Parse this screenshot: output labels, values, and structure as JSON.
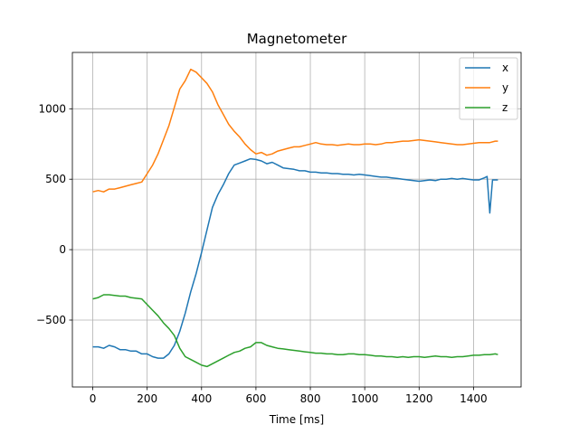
{
  "chart_data": {
    "type": "line",
    "title": "Magnetometer",
    "xlabel": "Time [ms]",
    "ylabel": "",
    "xlim": [
      -75,
      1575
    ],
    "ylim": [
      -975,
      1400
    ],
    "xticks": [
      0,
      200,
      400,
      600,
      800,
      1000,
      1200,
      1400
    ],
    "yticks": [
      -500,
      0,
      500,
      1000
    ],
    "ytick_labels": [
      "−500",
      "0",
      "500",
      "1000"
    ],
    "grid": true,
    "legend_position": "top-right",
    "colors": {
      "x": "#1f77b4",
      "y": "#ff7f0e",
      "z": "#2ca02c"
    },
    "series": [
      {
        "name": "x",
        "color": "#1f77b4",
        "points": [
          [
            0,
            -690
          ],
          [
            20,
            -690
          ],
          [
            40,
            -700
          ],
          [
            60,
            -680
          ],
          [
            80,
            -690
          ],
          [
            100,
            -710
          ],
          [
            120,
            -710
          ],
          [
            140,
            -720
          ],
          [
            160,
            -720
          ],
          [
            180,
            -740
          ],
          [
            200,
            -740
          ],
          [
            220,
            -760
          ],
          [
            240,
            -770
          ],
          [
            260,
            -770
          ],
          [
            280,
            -740
          ],
          [
            300,
            -680
          ],
          [
            320,
            -580
          ],
          [
            340,
            -450
          ],
          [
            360,
            -300
          ],
          [
            380,
            -170
          ],
          [
            400,
            -20
          ],
          [
            420,
            140
          ],
          [
            440,
            300
          ],
          [
            460,
            390
          ],
          [
            480,
            460
          ],
          [
            500,
            540
          ],
          [
            520,
            600
          ],
          [
            540,
            615
          ],
          [
            560,
            630
          ],
          [
            580,
            645
          ],
          [
            600,
            640
          ],
          [
            620,
            630
          ],
          [
            640,
            610
          ],
          [
            660,
            620
          ],
          [
            680,
            600
          ],
          [
            700,
            580
          ],
          [
            720,
            575
          ],
          [
            740,
            570
          ],
          [
            760,
            560
          ],
          [
            780,
            560
          ],
          [
            800,
            550
          ],
          [
            820,
            550
          ],
          [
            840,
            545
          ],
          [
            860,
            545
          ],
          [
            880,
            540
          ],
          [
            900,
            540
          ],
          [
            920,
            535
          ],
          [
            940,
            535
          ],
          [
            960,
            530
          ],
          [
            980,
            535
          ],
          [
            1000,
            530
          ],
          [
            1020,
            525
          ],
          [
            1040,
            520
          ],
          [
            1060,
            515
          ],
          [
            1080,
            515
          ],
          [
            1100,
            510
          ],
          [
            1120,
            505
          ],
          [
            1140,
            500
          ],
          [
            1160,
            495
          ],
          [
            1180,
            490
          ],
          [
            1200,
            485
          ],
          [
            1220,
            490
          ],
          [
            1240,
            495
          ],
          [
            1260,
            490
          ],
          [
            1280,
            500
          ],
          [
            1300,
            500
          ],
          [
            1320,
            505
          ],
          [
            1340,
            500
          ],
          [
            1360,
            505
          ],
          [
            1380,
            500
          ],
          [
            1400,
            495
          ],
          [
            1420,
            495
          ],
          [
            1440,
            510
          ],
          [
            1450,
            520
          ],
          [
            1460,
            260
          ],
          [
            1470,
            495
          ],
          [
            1490,
            495
          ]
        ]
      },
      {
        "name": "y",
        "color": "#ff7f0e",
        "points": [
          [
            0,
            410
          ],
          [
            20,
            420
          ],
          [
            40,
            410
          ],
          [
            60,
            430
          ],
          [
            80,
            430
          ],
          [
            100,
            440
          ],
          [
            120,
            450
          ],
          [
            140,
            460
          ],
          [
            160,
            470
          ],
          [
            180,
            480
          ],
          [
            200,
            540
          ],
          [
            220,
            600
          ],
          [
            240,
            680
          ],
          [
            260,
            780
          ],
          [
            280,
            880
          ],
          [
            300,
            1010
          ],
          [
            320,
            1140
          ],
          [
            340,
            1200
          ],
          [
            360,
            1280
          ],
          [
            380,
            1260
          ],
          [
            400,
            1220
          ],
          [
            420,
            1180
          ],
          [
            440,
            1120
          ],
          [
            460,
            1030
          ],
          [
            480,
            960
          ],
          [
            500,
            890
          ],
          [
            520,
            840
          ],
          [
            540,
            800
          ],
          [
            560,
            750
          ],
          [
            580,
            710
          ],
          [
            600,
            680
          ],
          [
            620,
            690
          ],
          [
            640,
            670
          ],
          [
            660,
            680
          ],
          [
            680,
            700
          ],
          [
            700,
            710
          ],
          [
            720,
            720
          ],
          [
            740,
            730
          ],
          [
            760,
            730
          ],
          [
            780,
            740
          ],
          [
            800,
            750
          ],
          [
            820,
            760
          ],
          [
            840,
            750
          ],
          [
            860,
            745
          ],
          [
            880,
            745
          ],
          [
            900,
            740
          ],
          [
            920,
            745
          ],
          [
            940,
            750
          ],
          [
            960,
            745
          ],
          [
            980,
            745
          ],
          [
            1000,
            750
          ],
          [
            1020,
            750
          ],
          [
            1040,
            745
          ],
          [
            1060,
            750
          ],
          [
            1080,
            760
          ],
          [
            1100,
            760
          ],
          [
            1120,
            765
          ],
          [
            1140,
            770
          ],
          [
            1160,
            770
          ],
          [
            1180,
            775
          ],
          [
            1200,
            780
          ],
          [
            1220,
            775
          ],
          [
            1240,
            770
          ],
          [
            1260,
            765
          ],
          [
            1280,
            760
          ],
          [
            1300,
            755
          ],
          [
            1320,
            750
          ],
          [
            1340,
            745
          ],
          [
            1360,
            745
          ],
          [
            1380,
            750
          ],
          [
            1400,
            755
          ],
          [
            1420,
            760
          ],
          [
            1440,
            760
          ],
          [
            1460,
            760
          ],
          [
            1480,
            770
          ],
          [
            1490,
            770
          ]
        ]
      },
      {
        "name": "z",
        "color": "#2ca02c",
        "points": [
          [
            0,
            -350
          ],
          [
            20,
            -340
          ],
          [
            40,
            -320
          ],
          [
            60,
            -320
          ],
          [
            80,
            -325
          ],
          [
            100,
            -330
          ],
          [
            120,
            -330
          ],
          [
            140,
            -340
          ],
          [
            160,
            -345
          ],
          [
            180,
            -350
          ],
          [
            200,
            -390
          ],
          [
            220,
            -430
          ],
          [
            240,
            -470
          ],
          [
            260,
            -520
          ],
          [
            280,
            -560
          ],
          [
            300,
            -610
          ],
          [
            320,
            -700
          ],
          [
            340,
            -760
          ],
          [
            360,
            -780
          ],
          [
            380,
            -800
          ],
          [
            400,
            -820
          ],
          [
            420,
            -830
          ],
          [
            440,
            -810
          ],
          [
            460,
            -790
          ],
          [
            480,
            -770
          ],
          [
            500,
            -750
          ],
          [
            520,
            -730
          ],
          [
            540,
            -720
          ],
          [
            560,
            -700
          ],
          [
            580,
            -690
          ],
          [
            600,
            -660
          ],
          [
            620,
            -660
          ],
          [
            640,
            -680
          ],
          [
            660,
            -690
          ],
          [
            680,
            -700
          ],
          [
            700,
            -705
          ],
          [
            720,
            -710
          ],
          [
            740,
            -715
          ],
          [
            760,
            -720
          ],
          [
            780,
            -725
          ],
          [
            800,
            -730
          ],
          [
            820,
            -735
          ],
          [
            840,
            -735
          ],
          [
            860,
            -740
          ],
          [
            880,
            -740
          ],
          [
            900,
            -745
          ],
          [
            920,
            -745
          ],
          [
            940,
            -740
          ],
          [
            960,
            -740
          ],
          [
            980,
            -745
          ],
          [
            1000,
            -745
          ],
          [
            1020,
            -750
          ],
          [
            1040,
            -755
          ],
          [
            1060,
            -755
          ],
          [
            1080,
            -760
          ],
          [
            1100,
            -760
          ],
          [
            1120,
            -765
          ],
          [
            1140,
            -760
          ],
          [
            1160,
            -765
          ],
          [
            1180,
            -760
          ],
          [
            1200,
            -760
          ],
          [
            1220,
            -765
          ],
          [
            1240,
            -760
          ],
          [
            1260,
            -755
          ],
          [
            1280,
            -760
          ],
          [
            1300,
            -760
          ],
          [
            1320,
            -765
          ],
          [
            1340,
            -760
          ],
          [
            1360,
            -760
          ],
          [
            1380,
            -755
          ],
          [
            1400,
            -750
          ],
          [
            1420,
            -750
          ],
          [
            1440,
            -745
          ],
          [
            1460,
            -745
          ],
          [
            1480,
            -740
          ],
          [
            1490,
            -745
          ]
        ]
      }
    ]
  }
}
